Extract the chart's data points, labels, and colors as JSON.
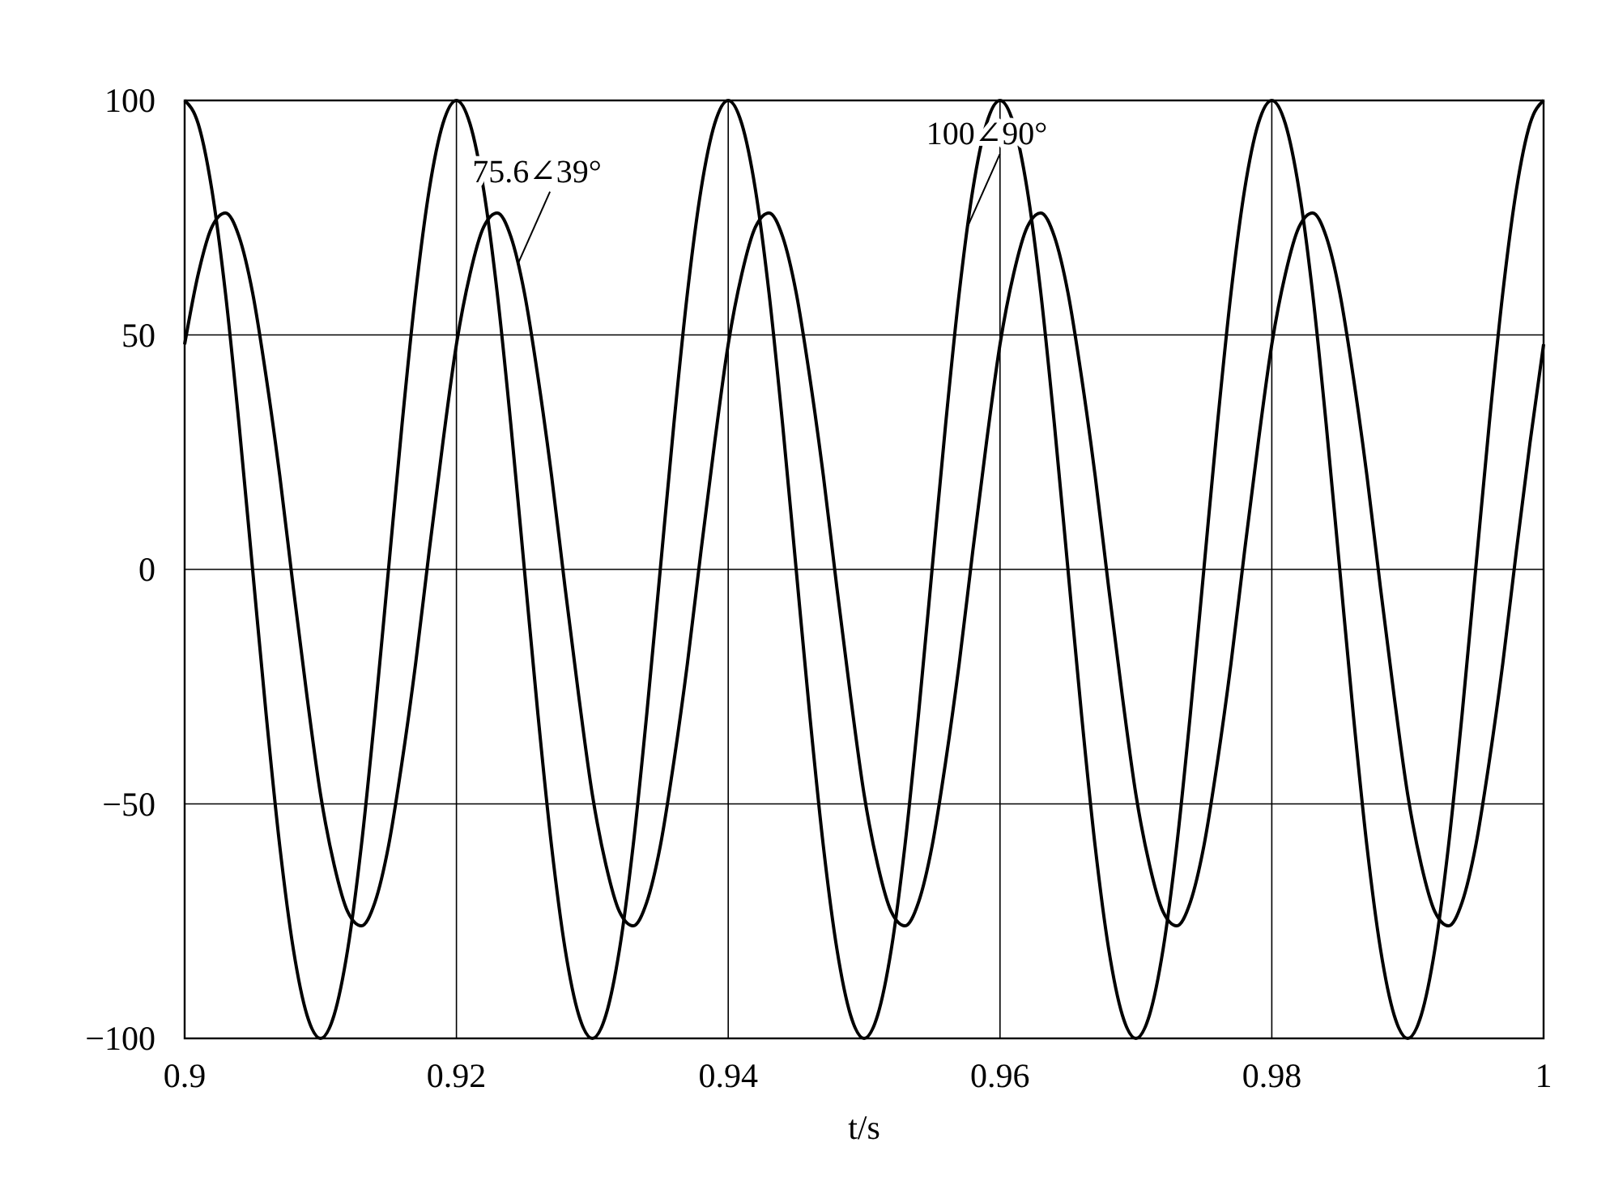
{
  "chart_data": {
    "type": "line",
    "xlabel": "t/s",
    "x": [
      0.9,
      0.901,
      0.902,
      0.903,
      0.904,
      0.905,
      0.906,
      0.907,
      0.908,
      0.909,
      0.91,
      0.911,
      0.912,
      0.913,
      0.914,
      0.915,
      0.916,
      0.917,
      0.918,
      0.919,
      0.92,
      0.921,
      0.922,
      0.923,
      0.924,
      0.925,
      0.926,
      0.927,
      0.928,
      0.929,
      0.93,
      0.931,
      0.932,
      0.933,
      0.934,
      0.935,
      0.936,
      0.937,
      0.938,
      0.939,
      0.94,
      0.941,
      0.942,
      0.943,
      0.944,
      0.945,
      0.946,
      0.947,
      0.948,
      0.949,
      0.95,
      0.951,
      0.952,
      0.953,
      0.954,
      0.955,
      0.956,
      0.957,
      0.958,
      0.959,
      0.96,
      0.961,
      0.962,
      0.963,
      0.964,
      0.965,
      0.966,
      0.967,
      0.968,
      0.969,
      0.97,
      0.971,
      0.972,
      0.973,
      0.974,
      0.975,
      0.976,
      0.977,
      0.978,
      0.979,
      0.98,
      0.981,
      0.982,
      0.983,
      0.984,
      0.985,
      0.986,
      0.987,
      0.988,
      0.989,
      0.99,
      0.991,
      0.992,
      0.993,
      0.994,
      0.995,
      0.996,
      0.997,
      0.998,
      0.999,
      1
    ],
    "series": [
      {
        "color": "#000000",
        "values": [
          100,
          95,
          81,
          59,
          31,
          0,
          -31,
          -59,
          -81,
          -95,
          -100,
          -95,
          -81,
          -59,
          -31,
          0,
          31,
          59,
          81,
          95,
          100,
          95,
          81,
          59,
          31,
          0,
          -31,
          -59,
          -81,
          -95,
          -100,
          -95,
          -81,
          -59,
          -31,
          0,
          31,
          59,
          81,
          95,
          100,
          95,
          81,
          59,
          31,
          0,
          -31,
          -59,
          -81,
          -95,
          -100,
          -95,
          -81,
          -59,
          -31,
          0,
          31,
          59,
          81,
          95,
          100,
          95,
          81,
          59,
          31,
          0,
          -31,
          -59,
          -81,
          -95,
          -100,
          -95,
          -81,
          -59,
          -31,
          0,
          31,
          59,
          81,
          95,
          100,
          95,
          81,
          59,
          31,
          0,
          -31,
          -59,
          -81,
          -95,
          -100,
          -95,
          -81,
          -59,
          -31,
          0,
          31,
          59,
          81,
          95,
          100
        ]
      },
      {
        "color": "#000000",
        "values": [
          48,
          63,
          73,
          76,
          71,
          59,
          41,
          20,
          -4,
          -27,
          -48,
          -63,
          -73,
          -76,
          -71,
          -59,
          -41,
          -20,
          4,
          27,
          48,
          63,
          73,
          76,
          71,
          59,
          41,
          20,
          -4,
          -27,
          -48,
          -63,
          -73,
          -76,
          -71,
          -59,
          -41,
          -20,
          4,
          27,
          48,
          63,
          73,
          76,
          71,
          59,
          41,
          20,
          -4,
          -27,
          -48,
          -63,
          -73,
          -76,
          -71,
          -59,
          -41,
          -20,
          4,
          27,
          48,
          63,
          73,
          76,
          71,
          59,
          41,
          20,
          -4,
          -27,
          -48,
          -63,
          -73,
          -76,
          -71,
          -59,
          -41,
          -20,
          4,
          27,
          48,
          63,
          73,
          76,
          71,
          59,
          41,
          20,
          -4,
          -27,
          -48,
          -63,
          -73,
          -76,
          -71,
          -59,
          -41,
          -20,
          4,
          27,
          48
        ]
      }
    ],
    "xlim": [
      0.9,
      1
    ],
    "xticks": [
      0.9,
      0.92,
      0.94,
      0.96,
      0.98,
      1
    ],
    "ylim": [
      -100,
      100
    ],
    "yticks": [
      {
        "value": -100,
        "label": "−100"
      },
      {
        "value": -50,
        "label": "−50"
      },
      0,
      50,
      100
    ],
    "grid": true,
    "line_style": "solid",
    "marker": "none",
    "annotations": [
      {
        "text": "75.6∠39°",
        "x": 0.9245,
        "y": 65
      },
      {
        "text": "100∠90°",
        "x": 0.9576,
        "y": 73
      }
    ]
  }
}
